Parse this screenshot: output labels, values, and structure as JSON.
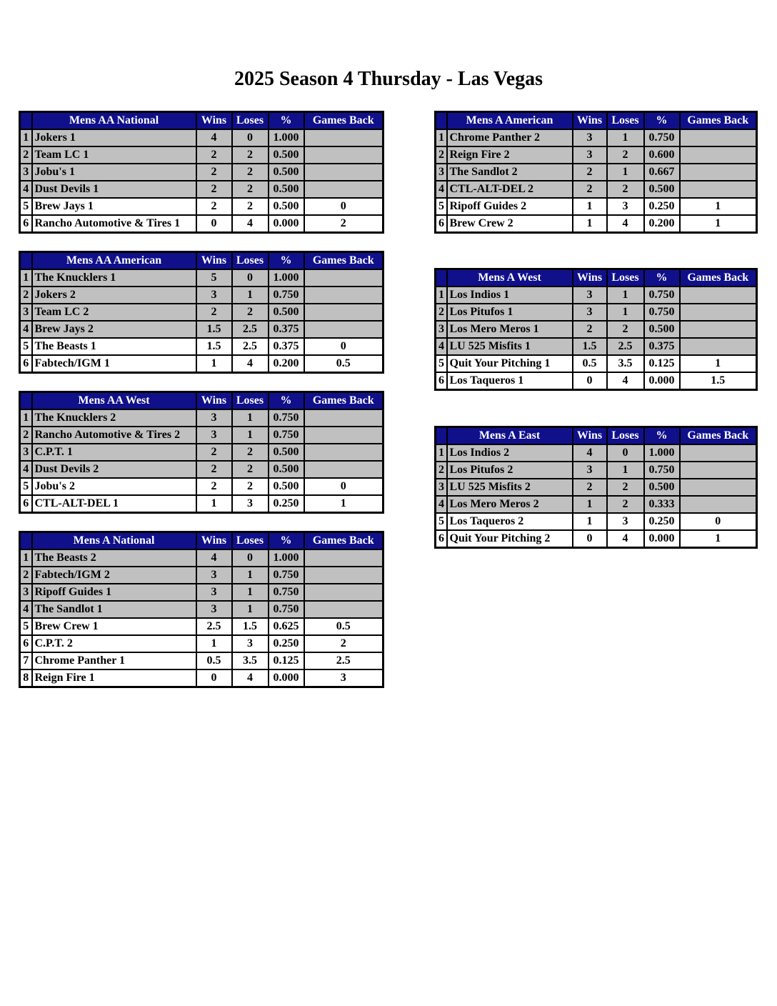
{
  "page": {
    "title": "2025 Season 4 Thursday - Las Vegas"
  },
  "colors": {
    "header_bg": "#10108A",
    "header_text": "#FFFFFF",
    "shaded_row_bg": "#C0C0C0",
    "border": "#000000"
  },
  "standings": {
    "column_headers": {
      "wins": "Wins",
      "loses": "Loses",
      "pct": "%",
      "games_back": "Games Back"
    },
    "left_tables": [
      {
        "title": "Mens AA National",
        "rows": [
          {
            "rank": "1",
            "team": "Jokers 1",
            "wins": "4",
            "loses": "0",
            "pct": "1.000",
            "games_back": ""
          },
          {
            "rank": "2",
            "team": "Team LC 1",
            "wins": "2",
            "loses": "2",
            "pct": "0.500",
            "games_back": ""
          },
          {
            "rank": "3",
            "team": "Jobu's 1",
            "wins": "2",
            "loses": "2",
            "pct": "0.500",
            "games_back": ""
          },
          {
            "rank": "4",
            "team": "Dust Devils 1",
            "wins": "2",
            "loses": "2",
            "pct": "0.500",
            "games_back": ""
          },
          {
            "rank": "5",
            "team": "Brew Jays 1",
            "wins": "2",
            "loses": "2",
            "pct": "0.500",
            "games_back": "0"
          },
          {
            "rank": "6",
            "team": "Rancho Automotive & Tires 1",
            "wins": "0",
            "loses": "4",
            "pct": "0.000",
            "games_back": "2"
          }
        ]
      },
      {
        "title": "Mens AA American",
        "rows": [
          {
            "rank": "1",
            "team": "The Knucklers 1",
            "wins": "5",
            "loses": "0",
            "pct": "1.000",
            "games_back": ""
          },
          {
            "rank": "2",
            "team": "Jokers 2",
            "wins": "3",
            "loses": "1",
            "pct": "0.750",
            "games_back": ""
          },
          {
            "rank": "3",
            "team": "Team LC 2",
            "wins": "2",
            "loses": "2",
            "pct": "0.500",
            "games_back": ""
          },
          {
            "rank": "4",
            "team": "Brew Jays 2",
            "wins": "1.5",
            "loses": "2.5",
            "pct": "0.375",
            "games_back": ""
          },
          {
            "rank": "5",
            "team": "The Beasts 1",
            "wins": "1.5",
            "loses": "2.5",
            "pct": "0.375",
            "games_back": "0"
          },
          {
            "rank": "6",
            "team": "Fabtech/IGM 1",
            "wins": "1",
            "loses": "4",
            "pct": "0.200",
            "games_back": "0.5"
          }
        ]
      },
      {
        "title": "Mens AA West",
        "rows": [
          {
            "rank": "1",
            "team": "The Knucklers 2",
            "wins": "3",
            "loses": "1",
            "pct": "0.750",
            "games_back": ""
          },
          {
            "rank": "2",
            "team": "Rancho Automotive & Tires 2",
            "wins": "3",
            "loses": "1",
            "pct": "0.750",
            "games_back": ""
          },
          {
            "rank": "3",
            "team": "C.P.T. 1",
            "wins": "2",
            "loses": "2",
            "pct": "0.500",
            "games_back": ""
          },
          {
            "rank": "4",
            "team": "Dust Devils 2",
            "wins": "2",
            "loses": "2",
            "pct": "0.500",
            "games_back": ""
          },
          {
            "rank": "5",
            "team": "Jobu's 2",
            "wins": "2",
            "loses": "2",
            "pct": "0.500",
            "games_back": "0"
          },
          {
            "rank": "6",
            "team": "CTL-ALT-DEL 1",
            "wins": "1",
            "loses": "3",
            "pct": "0.250",
            "games_back": "1"
          }
        ]
      },
      {
        "title": "Mens A National",
        "rows": [
          {
            "rank": "1",
            "team": "The Beasts 2",
            "wins": "4",
            "loses": "0",
            "pct": "1.000",
            "games_back": ""
          },
          {
            "rank": "2",
            "team": "Fabtech/IGM 2",
            "wins": "3",
            "loses": "1",
            "pct": "0.750",
            "games_back": ""
          },
          {
            "rank": "3",
            "team": "Ripoff Guides 1",
            "wins": "3",
            "loses": "1",
            "pct": "0.750",
            "games_back": ""
          },
          {
            "rank": "4",
            "team": "The Sandlot 1",
            "wins": "3",
            "loses": "1",
            "pct": "0.750",
            "games_back": ""
          },
          {
            "rank": "5",
            "team": "Brew Crew 1",
            "wins": "2.5",
            "loses": "1.5",
            "pct": "0.625",
            "games_back": "0.5"
          },
          {
            "rank": "6",
            "team": "C.P.T. 2",
            "wins": "1",
            "loses": "3",
            "pct": "0.250",
            "games_back": "2"
          },
          {
            "rank": "7",
            "team": "Chrome Panther 1",
            "wins": "0.5",
            "loses": "3.5",
            "pct": "0.125",
            "games_back": "2.5"
          },
          {
            "rank": "8",
            "team": "Reign Fire 1",
            "wins": "0",
            "loses": "4",
            "pct": "0.000",
            "games_back": "3"
          }
        ]
      }
    ],
    "right_tables": [
      {
        "title": "Mens A American",
        "rows": [
          {
            "rank": "1",
            "team": "Chrome Panther 2",
            "wins": "3",
            "loses": "1",
            "pct": "0.750",
            "games_back": ""
          },
          {
            "rank": "2",
            "team": "Reign Fire 2",
            "wins": "3",
            "loses": "2",
            "pct": "0.600",
            "games_back": ""
          },
          {
            "rank": "3",
            "team": "The Sandlot 2",
            "wins": "2",
            "loses": "1",
            "pct": "0.667",
            "games_back": ""
          },
          {
            "rank": "4",
            "team": "CTL-ALT-DEL 2",
            "wins": "2",
            "loses": "2",
            "pct": "0.500",
            "games_back": ""
          },
          {
            "rank": "5",
            "team": "Ripoff Guides 2",
            "wins": "1",
            "loses": "3",
            "pct": "0.250",
            "games_back": "1"
          },
          {
            "rank": "6",
            "team": "Brew Crew 2",
            "wins": "1",
            "loses": "4",
            "pct": "0.200",
            "games_back": "1"
          }
        ]
      },
      {
        "title": "Mens A West",
        "rows": [
          {
            "rank": "1",
            "team": "Los Indios 1",
            "wins": "3",
            "loses": "1",
            "pct": "0.750",
            "games_back": ""
          },
          {
            "rank": "2",
            "team": "Los Pitufos 1",
            "wins": "3",
            "loses": "1",
            "pct": "0.750",
            "games_back": ""
          },
          {
            "rank": "3",
            "team": "Los Mero Meros 1",
            "wins": "2",
            "loses": "2",
            "pct": "0.500",
            "games_back": ""
          },
          {
            "rank": "4",
            "team": "LU 525 Misfits 1",
            "wins": "1.5",
            "loses": "2.5",
            "pct": "0.375",
            "games_back": ""
          },
          {
            "rank": "5",
            "team": "Quit Your Pitching 1",
            "wins": "0.5",
            "loses": "3.5",
            "pct": "0.125",
            "games_back": "1"
          },
          {
            "rank": "6",
            "team": "Los Taqueros 1",
            "wins": "0",
            "loses": "4",
            "pct": "0.000",
            "games_back": "1.5"
          }
        ]
      },
      {
        "title": "Mens A East",
        "rows": [
          {
            "rank": "1",
            "team": "Los Indios 2",
            "wins": "4",
            "loses": "0",
            "pct": "1.000",
            "games_back": ""
          },
          {
            "rank": "2",
            "team": "Los Pitufos 2",
            "wins": "3",
            "loses": "1",
            "pct": "0.750",
            "games_back": ""
          },
          {
            "rank": "3",
            "team": "LU 525 Misfits 2",
            "wins": "2",
            "loses": "2",
            "pct": "0.500",
            "games_back": ""
          },
          {
            "rank": "4",
            "team": "Los Mero Meros 2",
            "wins": "1",
            "loses": "2",
            "pct": "0.333",
            "games_back": ""
          },
          {
            "rank": "5",
            "team": "Los Taqueros 2",
            "wins": "1",
            "loses": "3",
            "pct": "0.250",
            "games_back": "0"
          },
          {
            "rank": "6",
            "team": "Quit Your Pitching 2",
            "wins": "0",
            "loses": "4",
            "pct": "0.000",
            "games_back": "1"
          }
        ]
      }
    ]
  }
}
